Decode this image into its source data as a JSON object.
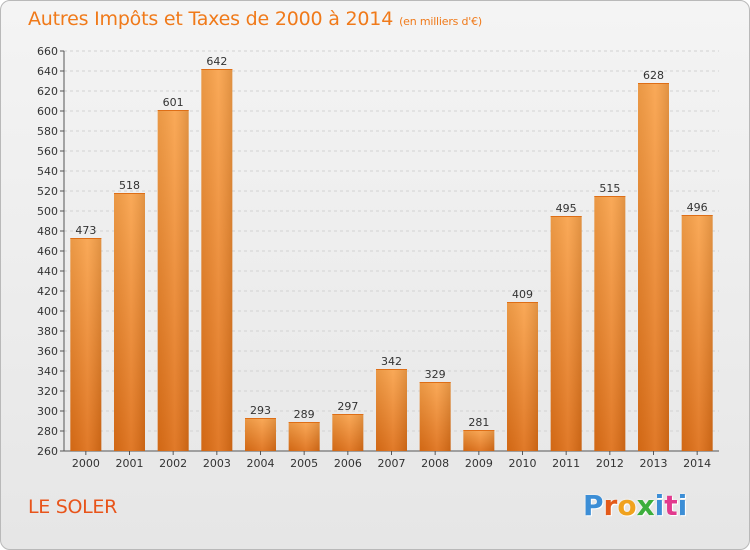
{
  "chart_data": {
    "type": "bar",
    "title": "Autres Impôts et Taxes de 2000 à 2014",
    "unit_note": "(en milliers d'€)",
    "categories": [
      "2000",
      "2001",
      "2002",
      "2003",
      "2004",
      "2005",
      "2006",
      "2007",
      "2008",
      "2009",
      "2010",
      "2011",
      "2012",
      "2013",
      "2014"
    ],
    "values": [
      473,
      518,
      601,
      642,
      293,
      289,
      297,
      342,
      329,
      281,
      409,
      495,
      515,
      628,
      496
    ],
    "ylim": [
      260,
      660
    ],
    "ytick_step": 20,
    "grid": true,
    "bar_color": "#f08a2a",
    "bar_color_light": "#f9a24a",
    "bar_color_dark": "#de6e16"
  },
  "commune": "LE SOLER",
  "logo": {
    "letters": [
      "P",
      "r",
      "o",
      "x",
      "i",
      "t",
      "i"
    ]
  }
}
